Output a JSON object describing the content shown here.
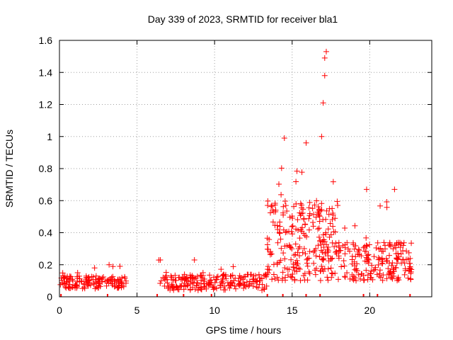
{
  "chart_data": {
    "type": "scatter",
    "title": "Day 339 of 2023, SRMTID for receiver bla1",
    "xlabel": "GPS time / hours",
    "ylabel": "SRMTID / TECUs",
    "xlim": [
      0,
      24
    ],
    "ylim": [
      0,
      1.6
    ],
    "xticks": [
      0,
      5,
      10,
      15,
      20
    ],
    "yticks": [
      0,
      0.2,
      0.4,
      0.6,
      0.8,
      1,
      1.2,
      1.4,
      1.6
    ],
    "ytick_labels": [
      "0",
      "0.2",
      "0.4",
      "0.6",
      "0.8",
      "1",
      "1.2",
      "1.4",
      "1.6"
    ],
    "grid": true,
    "marker": "+",
    "color": "#ff0000",
    "segments": [
      {
        "x0": 0.0,
        "x1": 4.3,
        "base": 0.09,
        "spread": 0.04,
        "n": 150
      },
      {
        "x0": 6.4,
        "x1": 13.4,
        "base": 0.09,
        "spread": 0.05,
        "n": 220
      },
      {
        "x0": 13.4,
        "x1": 18.0,
        "base": 0.35,
        "spread": 0.25,
        "n": 260
      },
      {
        "x0": 18.0,
        "x1": 22.7,
        "base": 0.22,
        "spread": 0.12,
        "n": 200
      }
    ],
    "notable_points": [
      {
        "x": 3.2,
        "y": 0.2
      },
      {
        "x": 3.9,
        "y": 0.19
      },
      {
        "x": 6.5,
        "y": 0.23
      },
      {
        "x": 8.7,
        "y": 0.23
      },
      {
        "x": 14.5,
        "y": 0.99
      },
      {
        "x": 15.9,
        "y": 0.96
      },
      {
        "x": 16.9,
        "y": 1.0
      },
      {
        "x": 17.0,
        "y": 1.21
      },
      {
        "x": 17.1,
        "y": 1.38
      },
      {
        "x": 17.1,
        "y": 1.49
      },
      {
        "x": 17.2,
        "y": 1.53
      },
      {
        "x": 19.8,
        "y": 0.67
      },
      {
        "x": 21.6,
        "y": 0.67
      }
    ],
    "baseline_ticks_x": [
      0.1,
      3.1,
      6.3,
      8.0,
      9.8,
      13.4,
      14.4,
      15.9,
      16.8,
      19.6,
      20.5,
      22.6
    ]
  }
}
